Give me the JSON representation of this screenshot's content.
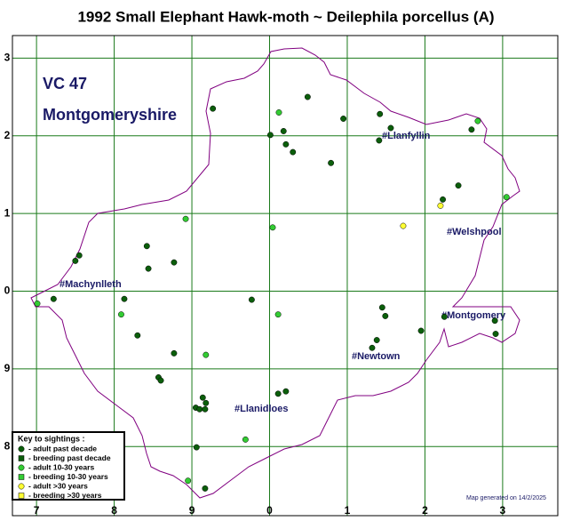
{
  "title": "1992 Small Elephant Hawk-moth ~ Deilephila porcellus (A)",
  "region": {
    "code": "VC 47",
    "name": "Montgomeryshire"
  },
  "footer": "Map generated on 14/2/2025",
  "towns": [
    "#Llanfyllin",
    "#Welshpool",
    "#Machynlleth",
    "#Montgomery",
    "#Newtown",
    "#Llanidloes"
  ],
  "map": {
    "xlim": [
      -0.31,
      6.71
    ],
    "ylim": [
      -0.89,
      5.29
    ],
    "xticks": [
      {
        "value": 0,
        "label": "7"
      },
      {
        "value": 1,
        "label": "8"
      },
      {
        "value": 2,
        "label": "9"
      },
      {
        "value": 3,
        "label": "0"
      },
      {
        "value": 4,
        "label": "1"
      },
      {
        "value": 5,
        "label": "2"
      },
      {
        "value": 6,
        "label": "3"
      }
    ],
    "yticks": [
      {
        "value": 0,
        "label": "8"
      },
      {
        "value": 1,
        "label": "9"
      },
      {
        "value": 2,
        "label": "0"
      },
      {
        "value": 3,
        "label": "1"
      },
      {
        "value": 4,
        "label": "2"
      },
      {
        "value": 5,
        "label": "3"
      }
    ],
    "grid": true,
    "grid_color": "#1a7a1a",
    "legend_title": "Key to sightings :",
    "series": [
      {
        "name": "- adult past decade",
        "color": "#0b5e0b",
        "shape": "circle",
        "x": [
          2.27,
          3.49,
          3.95,
          4.42,
          4.56,
          4.41,
          3.01,
          3.18,
          3.21,
          3.3,
          3.79,
          5.6,
          5.43,
          5.23,
          0.55,
          0.5,
          1.42,
          1.44,
          1.77,
          0.22,
          1.13,
          2.77,
          4.45,
          4.49,
          4.38,
          4.32,
          4.95,
          5.25,
          5.9,
          5.91,
          1.3,
          1.77,
          1.57,
          1.6,
          2.14,
          2.18,
          2.05,
          2.1,
          2.17,
          3.11,
          3.21,
          2.06,
          2.17
        ],
        "y": [
          4.35,
          4.5,
          4.22,
          4.28,
          4.1,
          3.94,
          4.01,
          4.06,
          3.89,
          3.79,
          3.65,
          4.08,
          3.36,
          3.18,
          2.46,
          2.39,
          2.58,
          2.29,
          2.37,
          1.9,
          1.9,
          1.89,
          1.79,
          1.68,
          1.37,
          1.27,
          1.49,
          1.67,
          1.62,
          1.45,
          1.43,
          1.2,
          0.89,
          0.85,
          0.63,
          0.56,
          0.5,
          0.48,
          0.48,
          0.68,
          0.71,
          -0.01,
          -0.54
        ]
      },
      {
        "name": "- breeding past decade",
        "color": "#0b5e0b",
        "shape": "square",
        "x": [],
        "y": []
      },
      {
        "name": "- adult 10-30 years",
        "color": "#33cc33",
        "shape": "circle",
        "x": [
          3.12,
          5.68,
          6.05,
          1.92,
          3.04,
          0.01,
          1.09,
          3.11,
          2.18,
          2.69,
          1.95
        ],
        "y": [
          4.3,
          4.19,
          3.21,
          2.93,
          2.82,
          1.84,
          1.7,
          1.7,
          1.18,
          0.09,
          -0.44
        ]
      },
      {
        "name": "- breeding 10-30 years",
        "color": "#33cc33",
        "shape": "square",
        "x": [],
        "y": []
      },
      {
        "name": "- adult >30 years",
        "color": "#ffff33",
        "shape": "circle",
        "x": [
          4.72,
          5.2
        ],
        "y": [
          2.84,
          3.1
        ]
      },
      {
        "name": "- breeding >30 years",
        "color": "#ffff33",
        "shape": "square",
        "x": [],
        "y": []
      }
    ]
  }
}
